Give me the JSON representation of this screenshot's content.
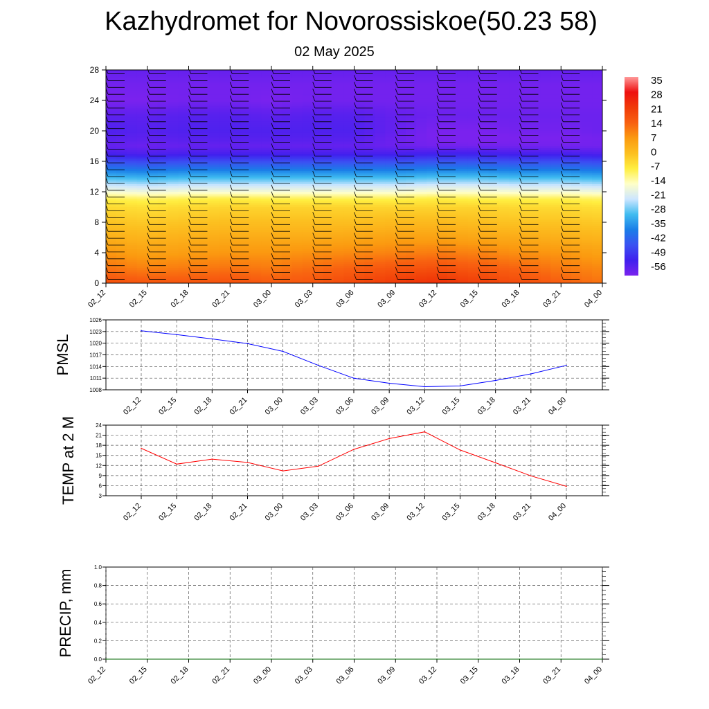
{
  "title": "Kazhydromet for Novorossiskoe(50.23 58)",
  "subtitle": "02 May 2025",
  "chart_data": [
    {
      "type": "heatmap",
      "title": "",
      "x_ticks": [
        "02_12",
        "02_15",
        "02_18",
        "02_21",
        "03_00",
        "03_03",
        "03_06",
        "03_09",
        "03_12",
        "03_15",
        "03_18",
        "03_21",
        "04_00"
      ],
      "y_ticks": [
        "0",
        "4",
        "8",
        "12",
        "16",
        "20",
        "24",
        "28"
      ],
      "ylim": [
        0,
        28
      ],
      "colorbar_labels": [
        "35",
        "28",
        "21",
        "14",
        "7",
        "0",
        "-7",
        "-14",
        "-21",
        "-28",
        "-35",
        "-42",
        "-49",
        "-56"
      ],
      "colorbar_range": [
        -63,
        42
      ],
      "colorbar_stops": [
        "#ff9a9a",
        "#ee1010",
        "#f03a08",
        "#f86010",
        "#fb9a10",
        "#fcc020",
        "#ffee40",
        "#ffffc8",
        "#cde6ff",
        "#40bcf0",
        "#1a7ee8",
        "#3a52f2",
        "#4020ee",
        "#7a22ee"
      ],
      "background_color": "#000000",
      "profile_heights": [
        0,
        2,
        4,
        6,
        8,
        10,
        11,
        12,
        13,
        14,
        15,
        16,
        17,
        18,
        19,
        20,
        22,
        24,
        26,
        28
      ],
      "profile_temps": [
        [
          21,
          15,
          10,
          5,
          1,
          -3,
          -7,
          -16,
          -24,
          -32,
          -40,
          -48,
          -56,
          -60,
          -58,
          -57,
          -59,
          -63,
          -62,
          -60
        ],
        [
          20,
          13,
          8,
          4,
          0,
          -4,
          -8,
          -17,
          -25,
          -33,
          -41,
          -49,
          -57,
          -61,
          -59,
          -58,
          -59,
          -63,
          -62,
          -60
        ],
        [
          20,
          14,
          9,
          5,
          1,
          -3,
          -7,
          -16,
          -24,
          -32,
          -40,
          -48,
          -56,
          -60,
          -58,
          -57,
          -58,
          -62,
          -62,
          -60
        ],
        [
          21,
          15,
          10,
          6,
          2,
          -2,
          -6,
          -16,
          -24,
          -32,
          -40,
          -48,
          -56,
          -60,
          -58,
          -57,
          -58,
          -62,
          -62,
          -60
        ],
        [
          19,
          14,
          10,
          6,
          2,
          -2,
          -7,
          -16,
          -24,
          -32,
          -40,
          -48,
          -56,
          -60,
          -58,
          -57,
          -59,
          -63,
          -62,
          -60
        ],
        [
          20,
          16,
          11,
          6,
          2,
          -2,
          -7,
          -16,
          -24,
          -32,
          -40,
          -48,
          -56,
          -60,
          -58,
          -57,
          -58,
          -62,
          -62,
          -60
        ],
        [
          23,
          18,
          12,
          7,
          2,
          -2,
          -7,
          -16,
          -24,
          -32,
          -40,
          -48,
          -56,
          -60,
          -58,
          -57,
          -58,
          -62,
          -62,
          -60
        ],
        [
          26,
          20,
          13,
          8,
          3,
          -2,
          -7,
          -16,
          -24,
          -32,
          -40,
          -48,
          -56,
          -61,
          -61,
          -60,
          -60,
          -62,
          -62,
          -60
        ],
        [
          28,
          21,
          14,
          8,
          3,
          -2,
          -6,
          -15,
          -23,
          -31,
          -39,
          -47,
          -55,
          -62,
          -63,
          -63,
          -61,
          -62,
          -62,
          -60
        ],
        [
          25,
          19,
          13,
          7,
          2,
          -2,
          -7,
          -15,
          -23,
          -31,
          -39,
          -47,
          -55,
          -62,
          -64,
          -63,
          -61,
          -62,
          -62,
          -60
        ],
        [
          22,
          17,
          11,
          6,
          1,
          -3,
          -7,
          -16,
          -24,
          -32,
          -40,
          -48,
          -56,
          -62,
          -63,
          -62,
          -61,
          -62,
          -62,
          -60
        ],
        [
          18,
          14,
          10,
          5,
          1,
          -3,
          -7,
          -16,
          -24,
          -32,
          -40,
          -48,
          -56,
          -62,
          -63,
          -62,
          -61,
          -62,
          -62,
          -60
        ],
        [
          15,
          12,
          8,
          4,
          0,
          -4,
          -8,
          -17,
          -25,
          -33,
          -41,
          -49,
          -57,
          -62,
          -62,
          -61,
          -61,
          -62,
          -62,
          -60
        ]
      ]
    },
    {
      "type": "line",
      "ylabel": "PMSL",
      "categories": [
        "02_12",
        "02_15",
        "02_18",
        "02_21",
        "03_00",
        "03_03",
        "03_06",
        "03_09",
        "03_12",
        "03_15",
        "03_18",
        "03_21",
        "04_00"
      ],
      "values": [
        1023.2,
        1022.2,
        1021.1,
        1019.9,
        1017.9,
        1014.3,
        1011.0,
        1009.7,
        1008.8,
        1009.0,
        1010.4,
        1012.1,
        1014.3
      ],
      "yticks": [
        "1008",
        "1011",
        "1014",
        "1017",
        "1020",
        "1023",
        "1026"
      ],
      "ylim": [
        1008,
        1026
      ],
      "color": "#0000ff"
    },
    {
      "type": "line",
      "ylabel": "TEMP at 2 M",
      "categories": [
        "02_12",
        "02_15",
        "02_18",
        "02_21",
        "03_00",
        "03_03",
        "03_06",
        "03_09",
        "03_12",
        "03_15",
        "03_18",
        "03_21",
        "04_00"
      ],
      "values": [
        17.1,
        12.4,
        13.9,
        12.9,
        10.4,
        11.8,
        16.8,
        20.0,
        22.0,
        16.6,
        12.8,
        8.9,
        5.8
      ],
      "yticks": [
        "3",
        "6",
        "9",
        "12",
        "15",
        "18",
        "21",
        "24"
      ],
      "ylim": [
        3,
        24
      ],
      "color": "#ff0000"
    },
    {
      "type": "line",
      "ylabel": "PRECIP, mm",
      "categories": [
        "02_12",
        "02_15",
        "02_18",
        "02_21",
        "03_00",
        "03_03",
        "03_06",
        "03_09",
        "03_12",
        "03_15",
        "03_18",
        "03_21",
        "04_00"
      ],
      "values": [
        0,
        0,
        0,
        0,
        0,
        0,
        0,
        0,
        0,
        0,
        0,
        0,
        0
      ],
      "yticks": [
        "0.0",
        "0.2",
        "0.4",
        "0.6",
        "0.8",
        "1.0"
      ],
      "ylim": [
        0,
        1
      ],
      "color": "#006400"
    }
  ]
}
